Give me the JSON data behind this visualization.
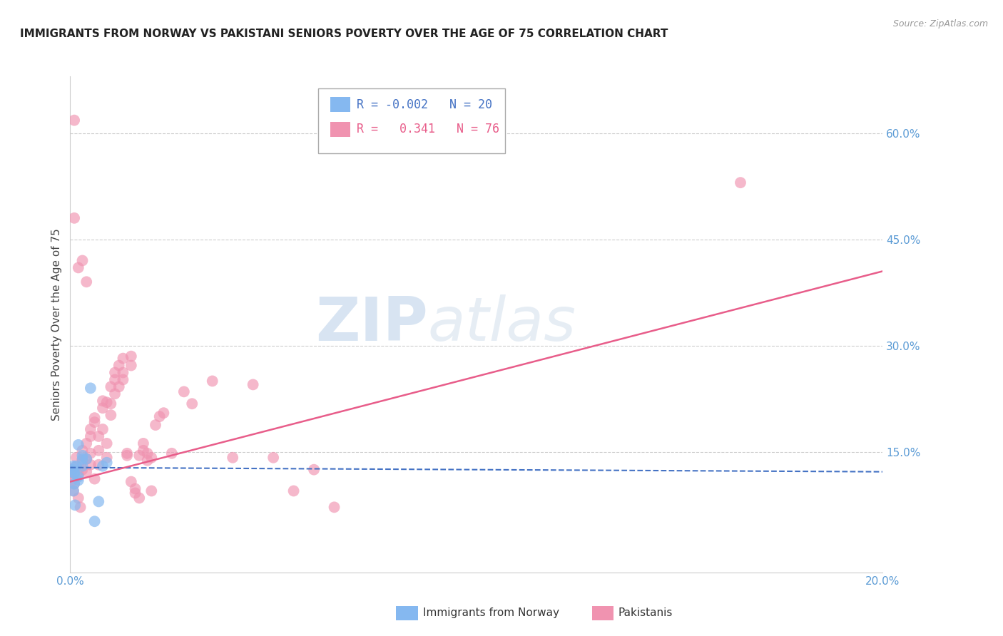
{
  "title": "IMMIGRANTS FROM NORWAY VS PAKISTANI SENIORS POVERTY OVER THE AGE OF 75 CORRELATION CHART",
  "source": "Source: ZipAtlas.com",
  "ylabel": "Seniors Poverty Over the Age of 75",
  "xlim": [
    0.0,
    0.2
  ],
  "ylim": [
    -0.02,
    0.68
  ],
  "ytick_positions": [
    0.15,
    0.3,
    0.45,
    0.6
  ],
  "ytick_labels": [
    "15.0%",
    "30.0%",
    "45.0%",
    "60.0%"
  ],
  "background_color": "#ffffff",
  "norway_color": "#85b8f0",
  "pakistan_color": "#f093b0",
  "norway_line_color": "#4472c4",
  "pakistan_line_color": "#e85d8a",
  "norway_R": "-0.002",
  "norway_N": "20",
  "pakistan_R": "0.341",
  "pakistan_N": "76",
  "norway_scatter_x": [
    0.0005,
    0.001,
    0.0008,
    0.002,
    0.0015,
    0.001,
    0.003,
    0.002,
    0.0012,
    0.0008,
    0.003,
    0.004,
    0.002,
    0.003,
    0.001,
    0.005,
    0.008,
    0.009,
    0.007,
    0.006
  ],
  "norway_scatter_y": [
    0.125,
    0.105,
    0.095,
    0.115,
    0.13,
    0.12,
    0.14,
    0.11,
    0.075,
    0.13,
    0.145,
    0.14,
    0.16,
    0.13,
    0.12,
    0.24,
    0.13,
    0.135,
    0.08,
    0.052
  ],
  "pakistan_scatter_x": [
    0.0003,
    0.0005,
    0.0008,
    0.001,
    0.001,
    0.0015,
    0.002,
    0.002,
    0.0025,
    0.003,
    0.003,
    0.003,
    0.004,
    0.004,
    0.004,
    0.005,
    0.005,
    0.005,
    0.005,
    0.006,
    0.006,
    0.006,
    0.007,
    0.007,
    0.007,
    0.008,
    0.008,
    0.008,
    0.009,
    0.009,
    0.009,
    0.01,
    0.01,
    0.01,
    0.011,
    0.011,
    0.011,
    0.012,
    0.012,
    0.013,
    0.013,
    0.013,
    0.014,
    0.014,
    0.015,
    0.015,
    0.015,
    0.016,
    0.016,
    0.017,
    0.017,
    0.018,
    0.018,
    0.019,
    0.019,
    0.02,
    0.02,
    0.021,
    0.022,
    0.023,
    0.025,
    0.028,
    0.03,
    0.035,
    0.04,
    0.045,
    0.05,
    0.055,
    0.06,
    0.065,
    0.001,
    0.002,
    0.003,
    0.004,
    0.001,
    0.165
  ],
  "pakistan_scatter_y": [
    0.12,
    0.11,
    0.095,
    0.128,
    0.105,
    0.142,
    0.085,
    0.118,
    0.072,
    0.125,
    0.138,
    0.152,
    0.14,
    0.162,
    0.122,
    0.172,
    0.182,
    0.148,
    0.132,
    0.112,
    0.192,
    0.198,
    0.172,
    0.152,
    0.132,
    0.212,
    0.222,
    0.182,
    0.162,
    0.142,
    0.22,
    0.202,
    0.242,
    0.218,
    0.252,
    0.232,
    0.262,
    0.242,
    0.272,
    0.252,
    0.282,
    0.262,
    0.148,
    0.145,
    0.285,
    0.272,
    0.108,
    0.098,
    0.092,
    0.085,
    0.145,
    0.152,
    0.162,
    0.148,
    0.138,
    0.142,
    0.095,
    0.188,
    0.2,
    0.205,
    0.148,
    0.235,
    0.218,
    0.25,
    0.142,
    0.245,
    0.142,
    0.095,
    0.125,
    0.072,
    0.618,
    0.41,
    0.42,
    0.39,
    0.48,
    0.53
  ],
  "norway_trend_x": [
    0.0,
    0.2
  ],
  "norway_trend_y": [
    0.128,
    0.122
  ],
  "pakistan_trend_x": [
    0.0,
    0.2
  ],
  "pakistan_trend_y": [
    0.108,
    0.405
  ],
  "watermark_zip": "ZIP",
  "watermark_atlas": "atlas",
  "title_fontsize": 11,
  "tick_fontsize": 11
}
